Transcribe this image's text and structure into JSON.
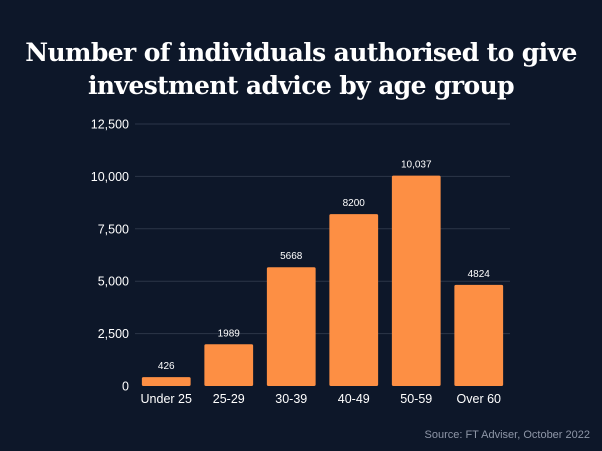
{
  "title_lines": [
    "Number of individuals authorised to give",
    "investment advice by age group"
  ],
  "source": "Source: FT Adviser, October 2022",
  "colors": {
    "background": "#0d1729",
    "bar": "#fd8f44",
    "gridline": "#2c3649",
    "text": "#ffffff",
    "source_text": "#8e96a7"
  },
  "chart_data": {
    "type": "bar",
    "title": "Number of individuals authorised to give investment advice by age group",
    "categories": [
      "Under 25",
      "25-29",
      "30-39",
      "40-49",
      "50-59",
      "Over 60"
    ],
    "values": [
      426,
      1989,
      5668,
      8200,
      10037,
      4824
    ],
    "data_labels": [
      "426",
      "1989",
      "5668",
      "8200",
      "10,037",
      "4824"
    ],
    "y_ticks": [
      0,
      2500,
      5000,
      7500,
      10000,
      12500
    ],
    "y_tick_labels": [
      "0",
      "2,500",
      "5,000",
      "7,500",
      "10,000",
      "12,500"
    ],
    "ylim": [
      0,
      12500
    ],
    "grid": true,
    "legend": "none",
    "xlabel": "",
    "ylabel": ""
  }
}
